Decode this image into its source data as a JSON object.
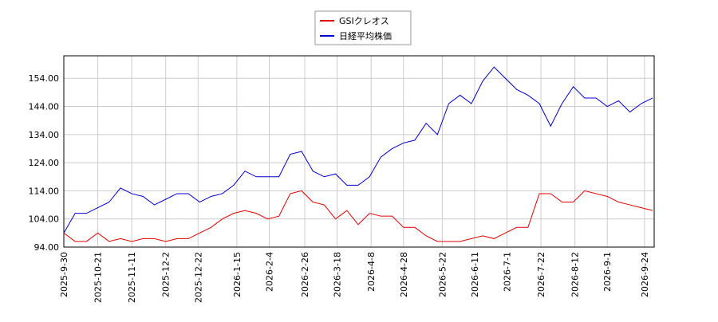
{
  "chart_data": {
    "type": "line",
    "x": [
      "2025-9-30",
      "2025-10-7",
      "2025-10-14",
      "2025-10-21",
      "2025-10-28",
      "2025-11-4",
      "2025-11-11",
      "2025-11-18",
      "2025-11-25",
      "2025-12-2",
      "2025-12-9",
      "2025-12-16",
      "2025-12-23",
      "2025-12-30",
      "2026-1-6",
      "2026-1-13",
      "2026-1-20",
      "2026-1-27",
      "2026-2-3",
      "2026-2-10",
      "2026-2-17",
      "2026-2-24",
      "2026-3-3",
      "2026-3-10",
      "2026-3-17",
      "2026-3-24",
      "2026-3-31",
      "2026-4-7",
      "2026-4-14",
      "2026-4-21",
      "2026-4-28",
      "2026-5-5",
      "2026-5-12",
      "2026-5-19",
      "2026-5-26",
      "2026-6-2",
      "2026-6-9",
      "2026-6-16",
      "2026-6-23",
      "2026-6-30",
      "2026-7-7",
      "2026-7-14",
      "2026-7-21",
      "2026-7-28",
      "2026-8-4",
      "2026-8-11",
      "2026-8-18",
      "2026-8-25",
      "2026-9-1",
      "2026-9-8",
      "2026-9-15",
      "2026-9-22",
      "2026-9-29"
    ],
    "series": [
      {
        "name": "GSIクレオス",
        "color": "#dd0000",
        "values": [
          99,
          96,
          96,
          99,
          96,
          97,
          96,
          97,
          97,
          96,
          97,
          97,
          99,
          101,
          104,
          106,
          107,
          106,
          104,
          105,
          113,
          114,
          110,
          109,
          104,
          107,
          102,
          106,
          105,
          105,
          101,
          101,
          98,
          96,
          96,
          96,
          97,
          98,
          97,
          99,
          101,
          101,
          113,
          113,
          110,
          110,
          114,
          113,
          112,
          110,
          109,
          108,
          107
        ]
      },
      {
        "name": "日経平均株価",
        "color": "#0000cc",
        "values": [
          99,
          106,
          106,
          108,
          110,
          115,
          113,
          112,
          109,
          111,
          113,
          113,
          110,
          112,
          113,
          116,
          121,
          119,
          119,
          119,
          127,
          128,
          121,
          119,
          120,
          116,
          116,
          119,
          126,
          129,
          131,
          132,
          138,
          134,
          145,
          148,
          145,
          153,
          158,
          154,
          150,
          148,
          145,
          137,
          145,
          151,
          147,
          147,
          144,
          146,
          142,
          145,
          147
        ]
      }
    ],
    "xlim": [
      "2025-9-30",
      "2026-9-30"
    ],
    "xticks": [
      "2025-9-30",
      "2025-10-21",
      "2025-11-11",
      "2025-12-2",
      "2025-12-22",
      "2026-1-15",
      "2026-2-4",
      "2026-2-26",
      "2026-3-18",
      "2026-4-8",
      "2026-4-28",
      "2026-5-22",
      "2026-6-11",
      "2026-7-1",
      "2026-7-22",
      "2026-8-12",
      "2026-9-1",
      "2026-9-24"
    ],
    "ylim": [
      94,
      162
    ],
    "yticks": [
      {
        "value": 94,
        "label": "94.00"
      },
      {
        "value": 104,
        "label": "104.00"
      },
      {
        "value": 114,
        "label": "114.00"
      },
      {
        "value": 124,
        "label": "124.00"
      },
      {
        "value": 134,
        "label": "134.00"
      },
      {
        "value": 144,
        "label": "144.00"
      },
      {
        "value": 154,
        "label": "154.00"
      }
    ],
    "grid": true,
    "legend": "top"
  }
}
